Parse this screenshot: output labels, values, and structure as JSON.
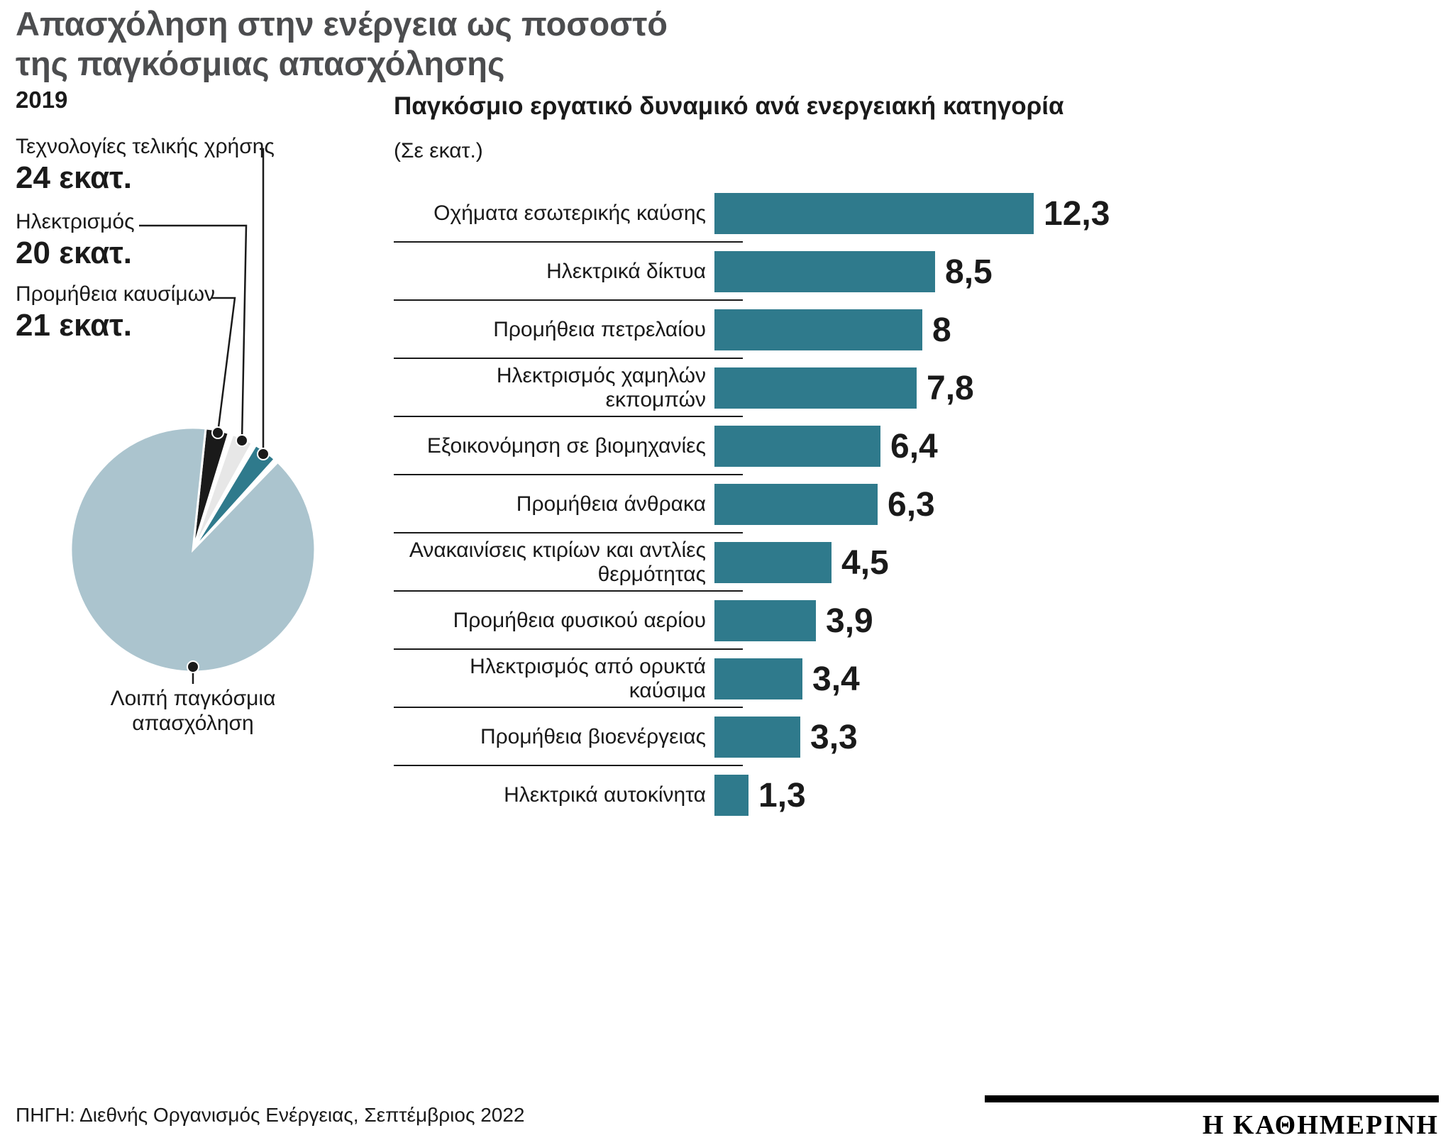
{
  "title": {
    "line1": "Απασχόληση στην ενέργεια ως ποσοστό",
    "line2": "της παγκόσμιας απασχόλησης"
  },
  "footer": {
    "source": "ΠΗΓΗ: Διεθνής Οργανισμός Ενέργειας, Σεπτέμβριος 2022",
    "logo": "Η ΚΑΘΗΜΕΡΙΝΗ"
  },
  "colors": {
    "teal": "#2F7A8C",
    "pie_rest": "#ABC4CE",
    "pie_black": "#1A1A1A",
    "pie_gray": "#E7E7E7",
    "title_gray": "#4C4D4F",
    "rule": "#1A1A1A"
  },
  "chart_data": [
    {
      "type": "pie",
      "title": "2019",
      "unit": "εκατ.",
      "slices": [
        {
          "label": "Προμήθεια καυσίμων",
          "value": 21,
          "value_label": "21 εκατ.",
          "color": "#1A1A1A",
          "display_arc_deg": [
            6,
            17
          ]
        },
        {
          "label": "Ηλεκτρισμός",
          "value": 20,
          "value_label": "20 εκατ.",
          "color": "#E7E7E7",
          "display_arc_deg": [
            19,
            29
          ]
        },
        {
          "label": "Τεχνολογίες τελικής χρήσης",
          "value": 24,
          "value_label": "24 εκατ.",
          "color": "#2F7A8C",
          "display_arc_deg": [
            31,
            42
          ]
        },
        {
          "label": "Λοιπή παγκόσμια απασχόληση",
          "value": null,
          "value_label": "",
          "color": "#ABC4CE",
          "display_arc_deg": [
            44,
            366
          ]
        }
      ]
    },
    {
      "type": "bar",
      "orientation": "horizontal",
      "title": "Παγκόσμιο εργατικό δυναμικό ανά ενεργειακή κατηγορία",
      "subtitle": "(Σε εκατ.)",
      "categories": [
        "Οχήματα εσωτερικής καύσης",
        "Ηλεκτρικά δίκτυα",
        "Προμήθεια πετρελαίου",
        "Ηλεκτρισμός χαμηλών εκπομπών",
        "Εξοικονόμηση σε βιομηχανίες",
        "Προμήθεια άνθρακα",
        "Ανακαινίσεις κτιρίων και αντλίες θερμότητας",
        "Προμήθεια φυσικού αερίου",
        "Ηλεκτρισμός από ορυκτά καύσιμα",
        "Προμήθεια βιοενέργειας",
        "Ηλεκτρικά αυτοκίνητα"
      ],
      "values": [
        12.3,
        8.5,
        8,
        7.8,
        6.4,
        6.3,
        4.5,
        3.9,
        3.4,
        3.3,
        1.3
      ],
      "value_labels": [
        "12,3",
        "8,5",
        "8",
        "7,8",
        "6,4",
        "6,3",
        "4,5",
        "3,9",
        "3,4",
        "3,3",
        "1,3"
      ],
      "xlim": [
        0,
        12.3
      ],
      "bar_color": "#2F7A8C",
      "grid": false,
      "legend": false
    }
  ]
}
